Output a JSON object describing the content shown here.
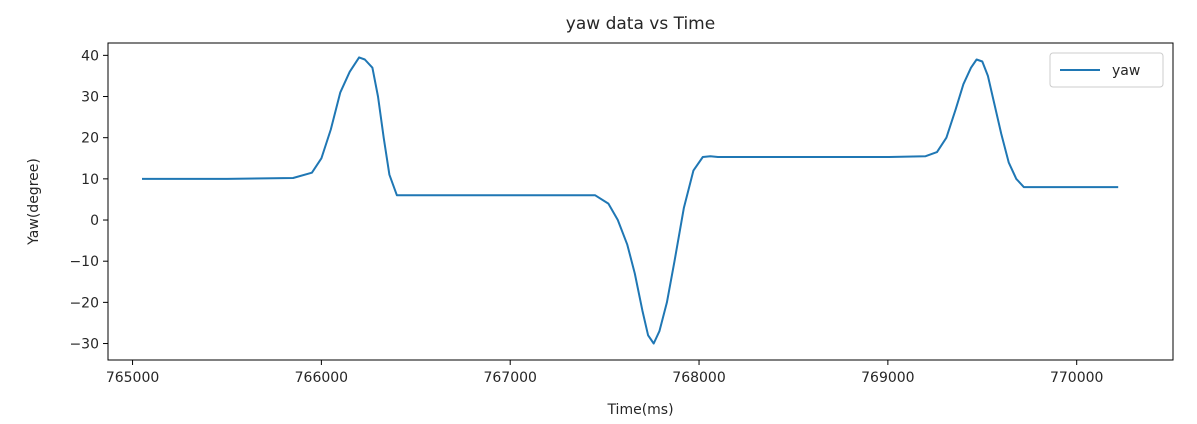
{
  "chart_data": {
    "type": "line",
    "title": "yaw data vs Time",
    "xlabel": "Time(ms)",
    "ylabel": "Yaw(degree)",
    "xlim": [
      764870,
      770510
    ],
    "ylim": [
      -34,
      43
    ],
    "xticks": [
      765000,
      766000,
      767000,
      768000,
      769000,
      770000
    ],
    "yticks": [
      -30,
      -20,
      -10,
      0,
      10,
      20,
      30,
      40
    ],
    "grid": false,
    "legend": {
      "placement": "top-right",
      "entries": [
        "yaw"
      ]
    },
    "series": [
      {
        "name": "yaw",
        "color": "#1f77b4",
        "x": [
          765050,
          765500,
          765850,
          765950,
          766000,
          766050,
          766100,
          766150,
          766200,
          766230,
          766270,
          766300,
          766330,
          766360,
          766400,
          766440,
          766500,
          766800,
          767200,
          767450,
          767520,
          767570,
          767620,
          767660,
          767700,
          767730,
          767760,
          767790,
          767830,
          767870,
          767920,
          767970,
          768020,
          768060,
          768100,
          768500,
          769000,
          769200,
          769260,
          769310,
          769360,
          769400,
          769440,
          769470,
          769500,
          769530,
          769560,
          769600,
          769640,
          769680,
          769720,
          769760,
          770000,
          770220
        ],
        "y": [
          10,
          10,
          10.2,
          11.5,
          15,
          22,
          31,
          36,
          39.5,
          39,
          37,
          30,
          20,
          11,
          6,
          6,
          6,
          6,
          6,
          6,
          4,
          0,
          -6,
          -13,
          -22,
          -28,
          -30,
          -27,
          -20,
          -10,
          3,
          12,
          15.3,
          15.5,
          15.3,
          15.3,
          15.3,
          15.5,
          16.5,
          20,
          27,
          33,
          37,
          39,
          38.5,
          35,
          29,
          21,
          14,
          10,
          8,
          8,
          8,
          8
        ]
      }
    ]
  }
}
